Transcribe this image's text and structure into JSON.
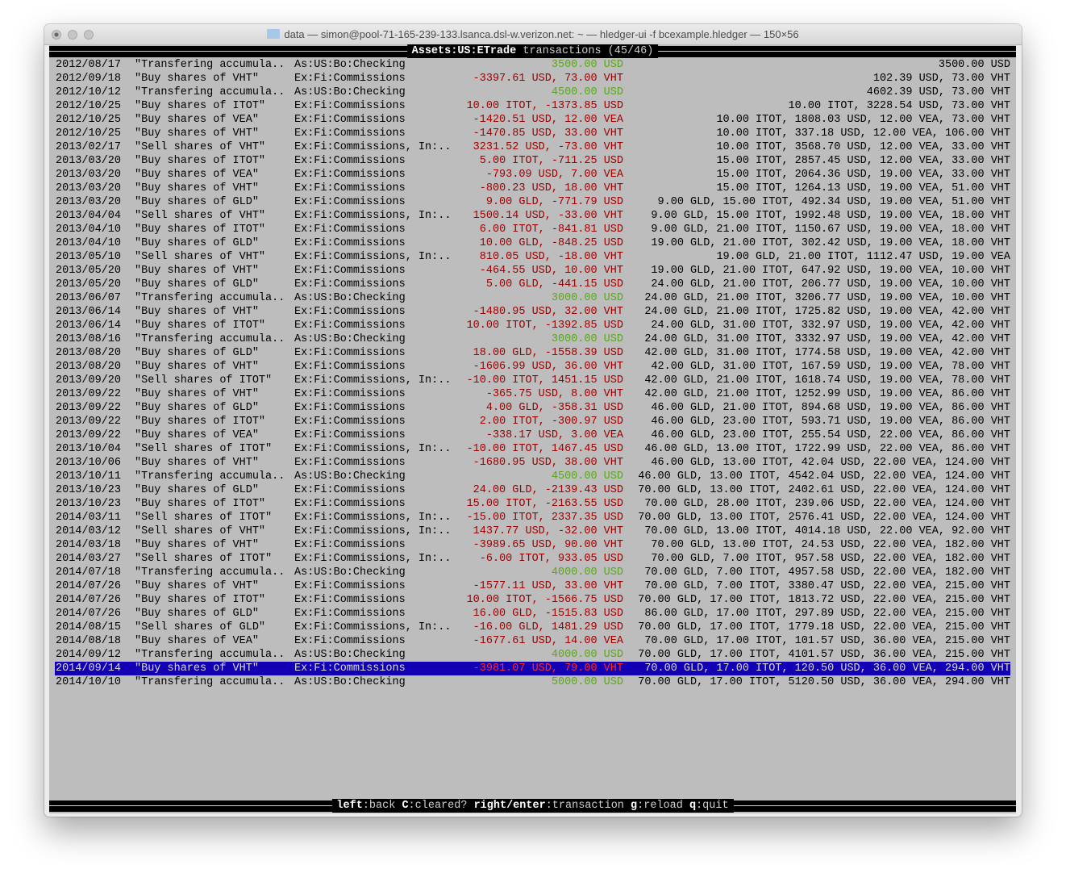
{
  "window": {
    "title": "data — simon@pool-71-165-239-133.lsanca.dsl-w.verizon.net: ~ — hledger-ui -f bcexample.hledger — 150×56"
  },
  "colors": {
    "background": "#bdbdbd",
    "in": "#5aa81a",
    "out": "#a00000",
    "selected_bg": "#1400b4",
    "selected_out": "#ff2a2a"
  },
  "header": {
    "account": "Assets:US:ETrade",
    "suffix": " transactions (45/46)"
  },
  "footer": {
    "items": [
      {
        "key": "left",
        "desc": ":back "
      },
      {
        "key": "C",
        "desc": ":cleared? "
      },
      {
        "key": "right/enter",
        "desc": ":transaction "
      },
      {
        "key": "g",
        "desc": ":reload "
      },
      {
        "key": "q",
        "desc": ":quit"
      }
    ]
  },
  "rows": [
    {
      "date": "2012/08/17",
      "desc": "\"Transfering accumula..",
      "account": "As:US:Bo:Checking",
      "amount": "3500.00 USD",
      "kind": "in",
      "balance": "3500.00 USD"
    },
    {
      "date": "2012/09/18",
      "desc": "\"Buy shares of VHT\"",
      "account": "Ex:Fi:Commissions",
      "amount": "-3397.61 USD, 73.00 VHT",
      "kind": "out",
      "balance": "102.39 USD, 73.00 VHT"
    },
    {
      "date": "2012/10/12",
      "desc": "\"Transfering accumula..",
      "account": "As:US:Bo:Checking",
      "amount": "4500.00 USD",
      "kind": "in",
      "balance": "4602.39 USD, 73.00 VHT"
    },
    {
      "date": "2012/10/25",
      "desc": "\"Buy shares of ITOT\"",
      "account": "Ex:Fi:Commissions",
      "amount": "10.00 ITOT, -1373.85 USD",
      "kind": "out",
      "balance": "10.00 ITOT, 3228.54 USD, 73.00 VHT"
    },
    {
      "date": "2012/10/25",
      "desc": "\"Buy shares of VEA\"",
      "account": "Ex:Fi:Commissions",
      "amount": "-1420.51 USD, 12.00 VEA",
      "kind": "out",
      "balance": "10.00 ITOT, 1808.03 USD, 12.00 VEA, 73.00 VHT"
    },
    {
      "date": "2012/10/25",
      "desc": "\"Buy shares of VHT\"",
      "account": "Ex:Fi:Commissions",
      "amount": "-1470.85 USD, 33.00 VHT",
      "kind": "out",
      "balance": "10.00 ITOT, 337.18 USD, 12.00 VEA, 106.00 VHT"
    },
    {
      "date": "2013/02/17",
      "desc": "\"Sell shares of VHT\"",
      "account": "Ex:Fi:Commissions, In:..",
      "amount": "3231.52 USD, -73.00 VHT",
      "kind": "out",
      "balance": "10.00 ITOT, 3568.70 USD, 12.00 VEA, 33.00 VHT"
    },
    {
      "date": "2013/03/20",
      "desc": "\"Buy shares of ITOT\"",
      "account": "Ex:Fi:Commissions",
      "amount": "5.00 ITOT, -711.25 USD",
      "kind": "out",
      "balance": "15.00 ITOT, 2857.45 USD, 12.00 VEA, 33.00 VHT"
    },
    {
      "date": "2013/03/20",
      "desc": "\"Buy shares of VEA\"",
      "account": "Ex:Fi:Commissions",
      "amount": "-793.09 USD, 7.00 VEA",
      "kind": "out",
      "balance": "15.00 ITOT, 2064.36 USD, 19.00 VEA, 33.00 VHT"
    },
    {
      "date": "2013/03/20",
      "desc": "\"Buy shares of VHT\"",
      "account": "Ex:Fi:Commissions",
      "amount": "-800.23 USD, 18.00 VHT",
      "kind": "out",
      "balance": "15.00 ITOT, 1264.13 USD, 19.00 VEA, 51.00 VHT"
    },
    {
      "date": "2013/03/20",
      "desc": "\"Buy shares of GLD\"",
      "account": "Ex:Fi:Commissions",
      "amount": "9.00 GLD, -771.79 USD",
      "kind": "out",
      "balance": "9.00 GLD, 15.00 ITOT, 492.34 USD, 19.00 VEA, 51.00 VHT"
    },
    {
      "date": "2013/04/04",
      "desc": "\"Sell shares of VHT\"",
      "account": "Ex:Fi:Commissions, In:..",
      "amount": "1500.14 USD, -33.00 VHT",
      "kind": "out",
      "balance": "9.00 GLD, 15.00 ITOT, 1992.48 USD, 19.00 VEA, 18.00 VHT"
    },
    {
      "date": "2013/04/10",
      "desc": "\"Buy shares of ITOT\"",
      "account": "Ex:Fi:Commissions",
      "amount": "6.00 ITOT, -841.81 USD",
      "kind": "out",
      "balance": "9.00 GLD, 21.00 ITOT, 1150.67 USD, 19.00 VEA, 18.00 VHT"
    },
    {
      "date": "2013/04/10",
      "desc": "\"Buy shares of GLD\"",
      "account": "Ex:Fi:Commissions",
      "amount": "10.00 GLD, -848.25 USD",
      "kind": "out",
      "balance": "19.00 GLD, 21.00 ITOT, 302.42 USD, 19.00 VEA, 18.00 VHT"
    },
    {
      "date": "2013/05/10",
      "desc": "\"Sell shares of VHT\"",
      "account": "Ex:Fi:Commissions, In:..",
      "amount": "810.05 USD, -18.00 VHT",
      "kind": "out",
      "balance": "19.00 GLD, 21.00 ITOT, 1112.47 USD, 19.00 VEA"
    },
    {
      "date": "2013/05/20",
      "desc": "\"Buy shares of VHT\"",
      "account": "Ex:Fi:Commissions",
      "amount": "-464.55 USD, 10.00 VHT",
      "kind": "out",
      "balance": "19.00 GLD, 21.00 ITOT, 647.92 USD, 19.00 VEA, 10.00 VHT"
    },
    {
      "date": "2013/05/20",
      "desc": "\"Buy shares of GLD\"",
      "account": "Ex:Fi:Commissions",
      "amount": "5.00 GLD, -441.15 USD",
      "kind": "out",
      "balance": "24.00 GLD, 21.00 ITOT, 206.77 USD, 19.00 VEA, 10.00 VHT"
    },
    {
      "date": "2013/06/07",
      "desc": "\"Transfering accumula..",
      "account": "As:US:Bo:Checking",
      "amount": "3000.00 USD",
      "kind": "in",
      "balance": "24.00 GLD, 21.00 ITOT, 3206.77 USD, 19.00 VEA, 10.00 VHT"
    },
    {
      "date": "2013/06/14",
      "desc": "\"Buy shares of VHT\"",
      "account": "Ex:Fi:Commissions",
      "amount": "-1480.95 USD, 32.00 VHT",
      "kind": "out",
      "balance": "24.00 GLD, 21.00 ITOT, 1725.82 USD, 19.00 VEA, 42.00 VHT"
    },
    {
      "date": "2013/06/14",
      "desc": "\"Buy shares of ITOT\"",
      "account": "Ex:Fi:Commissions",
      "amount": "10.00 ITOT, -1392.85 USD",
      "kind": "out",
      "balance": "24.00 GLD, 31.00 ITOT, 332.97 USD, 19.00 VEA, 42.00 VHT"
    },
    {
      "date": "2013/08/16",
      "desc": "\"Transfering accumula..",
      "account": "As:US:Bo:Checking",
      "amount": "3000.00 USD",
      "kind": "in",
      "balance": "24.00 GLD, 31.00 ITOT, 3332.97 USD, 19.00 VEA, 42.00 VHT"
    },
    {
      "date": "2013/08/20",
      "desc": "\"Buy shares of GLD\"",
      "account": "Ex:Fi:Commissions",
      "amount": "18.00 GLD, -1558.39 USD",
      "kind": "out",
      "balance": "42.00 GLD, 31.00 ITOT, 1774.58 USD, 19.00 VEA, 42.00 VHT"
    },
    {
      "date": "2013/08/20",
      "desc": "\"Buy shares of VHT\"",
      "account": "Ex:Fi:Commissions",
      "amount": "-1606.99 USD, 36.00 VHT",
      "kind": "out",
      "balance": "42.00 GLD, 31.00 ITOT, 167.59 USD, 19.00 VEA, 78.00 VHT"
    },
    {
      "date": "2013/09/20",
      "desc": "\"Sell shares of ITOT\"",
      "account": "Ex:Fi:Commissions, In:..",
      "amount": "-10.00 ITOT, 1451.15 USD",
      "kind": "out",
      "balance": "42.00 GLD, 21.00 ITOT, 1618.74 USD, 19.00 VEA, 78.00 VHT"
    },
    {
      "date": "2013/09/22",
      "desc": "\"Buy shares of VHT\"",
      "account": "Ex:Fi:Commissions",
      "amount": "-365.75 USD, 8.00 VHT",
      "kind": "out",
      "balance": "42.00 GLD, 21.00 ITOT, 1252.99 USD, 19.00 VEA, 86.00 VHT"
    },
    {
      "date": "2013/09/22",
      "desc": "\"Buy shares of GLD\"",
      "account": "Ex:Fi:Commissions",
      "amount": "4.00 GLD, -358.31 USD",
      "kind": "out",
      "balance": "46.00 GLD, 21.00 ITOT, 894.68 USD, 19.00 VEA, 86.00 VHT"
    },
    {
      "date": "2013/09/22",
      "desc": "\"Buy shares of ITOT\"",
      "account": "Ex:Fi:Commissions",
      "amount": "2.00 ITOT, -300.97 USD",
      "kind": "out",
      "balance": "46.00 GLD, 23.00 ITOT, 593.71 USD, 19.00 VEA, 86.00 VHT"
    },
    {
      "date": "2013/09/22",
      "desc": "\"Buy shares of VEA\"",
      "account": "Ex:Fi:Commissions",
      "amount": "-338.17 USD, 3.00 VEA",
      "kind": "out",
      "balance": "46.00 GLD, 23.00 ITOT, 255.54 USD, 22.00 VEA, 86.00 VHT"
    },
    {
      "date": "2013/10/04",
      "desc": "\"Sell shares of ITOT\"",
      "account": "Ex:Fi:Commissions, In:..",
      "amount": "-10.00 ITOT, 1467.45 USD",
      "kind": "out",
      "balance": "46.00 GLD, 13.00 ITOT, 1722.99 USD, 22.00 VEA, 86.00 VHT"
    },
    {
      "date": "2013/10/06",
      "desc": "\"Buy shares of VHT\"",
      "account": "Ex:Fi:Commissions",
      "amount": "-1680.95 USD, 38.00 VHT",
      "kind": "out",
      "balance": "46.00 GLD, 13.00 ITOT, 42.04 USD, 22.00 VEA, 124.00 VHT"
    },
    {
      "date": "2013/10/11",
      "desc": "\"Transfering accumula..",
      "account": "As:US:Bo:Checking",
      "amount": "4500.00 USD",
      "kind": "in",
      "balance": "46.00 GLD, 13.00 ITOT, 4542.04 USD, 22.00 VEA, 124.00 VHT"
    },
    {
      "date": "2013/10/23",
      "desc": "\"Buy shares of GLD\"",
      "account": "Ex:Fi:Commissions",
      "amount": "24.00 GLD, -2139.43 USD",
      "kind": "out",
      "balance": "70.00 GLD, 13.00 ITOT, 2402.61 USD, 22.00 VEA, 124.00 VHT"
    },
    {
      "date": "2013/10/23",
      "desc": "\"Buy shares of ITOT\"",
      "account": "Ex:Fi:Commissions",
      "amount": "15.00 ITOT, -2163.55 USD",
      "kind": "out",
      "balance": "70.00 GLD, 28.00 ITOT, 239.06 USD, 22.00 VEA, 124.00 VHT"
    },
    {
      "date": "2014/03/11",
      "desc": "\"Sell shares of ITOT\"",
      "account": "Ex:Fi:Commissions, In:..",
      "amount": "-15.00 ITOT, 2337.35 USD",
      "kind": "out",
      "balance": "70.00 GLD, 13.00 ITOT, 2576.41 USD, 22.00 VEA, 124.00 VHT"
    },
    {
      "date": "2014/03/12",
      "desc": "\"Sell shares of VHT\"",
      "account": "Ex:Fi:Commissions, In:..",
      "amount": "1437.77 USD, -32.00 VHT",
      "kind": "out",
      "balance": "70.00 GLD, 13.00 ITOT, 4014.18 USD, 22.00 VEA, 92.00 VHT"
    },
    {
      "date": "2014/03/18",
      "desc": "\"Buy shares of VHT\"",
      "account": "Ex:Fi:Commissions",
      "amount": "-3989.65 USD, 90.00 VHT",
      "kind": "out",
      "balance": "70.00 GLD, 13.00 ITOT, 24.53 USD, 22.00 VEA, 182.00 VHT"
    },
    {
      "date": "2014/03/27",
      "desc": "\"Sell shares of ITOT\"",
      "account": "Ex:Fi:Commissions, In:..",
      "amount": "-6.00 ITOT, 933.05 USD",
      "kind": "out",
      "balance": "70.00 GLD, 7.00 ITOT, 957.58 USD, 22.00 VEA, 182.00 VHT"
    },
    {
      "date": "2014/07/18",
      "desc": "\"Transfering accumula..",
      "account": "As:US:Bo:Checking",
      "amount": "4000.00 USD",
      "kind": "in",
      "balance": "70.00 GLD, 7.00 ITOT, 4957.58 USD, 22.00 VEA, 182.00 VHT"
    },
    {
      "date": "2014/07/26",
      "desc": "\"Buy shares of VHT\"",
      "account": "Ex:Fi:Commissions",
      "amount": "-1577.11 USD, 33.00 VHT",
      "kind": "out",
      "balance": "70.00 GLD, 7.00 ITOT, 3380.47 USD, 22.00 VEA, 215.00 VHT"
    },
    {
      "date": "2014/07/26",
      "desc": "\"Buy shares of ITOT\"",
      "account": "Ex:Fi:Commissions",
      "amount": "10.00 ITOT, -1566.75 USD",
      "kind": "out",
      "balance": "70.00 GLD, 17.00 ITOT, 1813.72 USD, 22.00 VEA, 215.00 VHT"
    },
    {
      "date": "2014/07/26",
      "desc": "\"Buy shares of GLD\"",
      "account": "Ex:Fi:Commissions",
      "amount": "16.00 GLD, -1515.83 USD",
      "kind": "out",
      "balance": "86.00 GLD, 17.00 ITOT, 297.89 USD, 22.00 VEA, 215.00 VHT"
    },
    {
      "date": "2014/08/15",
      "desc": "\"Sell shares of GLD\"",
      "account": "Ex:Fi:Commissions, In:..",
      "amount": "-16.00 GLD, 1481.29 USD",
      "kind": "out",
      "balance": "70.00 GLD, 17.00 ITOT, 1779.18 USD, 22.00 VEA, 215.00 VHT"
    },
    {
      "date": "2014/08/18",
      "desc": "\"Buy shares of VEA\"",
      "account": "Ex:Fi:Commissions",
      "amount": "-1677.61 USD, 14.00 VEA",
      "kind": "out",
      "balance": "70.00 GLD, 17.00 ITOT, 101.57 USD, 36.00 VEA, 215.00 VHT"
    },
    {
      "date": "2014/09/12",
      "desc": "\"Transfering accumula..",
      "account": "As:US:Bo:Checking",
      "amount": "4000.00 USD",
      "kind": "in",
      "balance": "70.00 GLD, 17.00 ITOT, 4101.57 USD, 36.00 VEA, 215.00 VHT"
    },
    {
      "date": "2014/09/14",
      "desc": "\"Buy shares of VHT\"",
      "account": "Ex:Fi:Commissions",
      "amount": "-3981.07 USD, 79.00 VHT",
      "kind": "out",
      "balance": "70.00 GLD, 17.00 ITOT, 120.50 USD, 36.00 VEA, 294.00 VHT",
      "selected": true
    },
    {
      "date": "2014/10/10",
      "desc": "\"Transfering accumula..",
      "account": "As:US:Bo:Checking",
      "amount": "5000.00 USD",
      "kind": "in",
      "balance": "70.00 GLD, 17.00 ITOT, 5120.50 USD, 36.00 VEA, 294.00 VHT"
    }
  ]
}
